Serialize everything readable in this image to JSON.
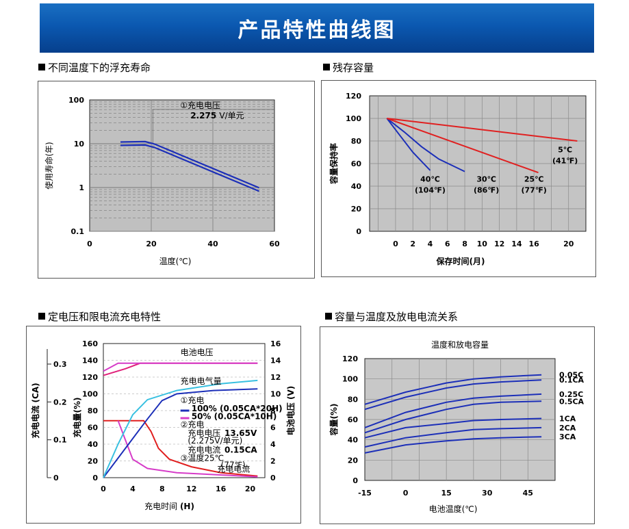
{
  "banner": {
    "title": "产品特性曲线图"
  },
  "sections": {
    "float_life": "不同温度下的浮充寿命",
    "residual": "残存容量",
    "charging": "定电压和限电流充电特性",
    "capacity_temp": "容量与温度及放电电流关系"
  },
  "chart_data": [
    {
      "id": "float_life",
      "type": "line",
      "title": "",
      "xlabel": "温度(℃)",
      "ylabel": "使用寿命(年)",
      "yscale": "log",
      "xlim": [
        0,
        60
      ],
      "ylim": [
        0.1,
        100
      ],
      "x_ticks": [
        "0",
        "20",
        "40",
        "60"
      ],
      "y_ticks": [
        "0.1",
        "1",
        "10",
        "100"
      ],
      "grid": true,
      "annotation": {
        "line1": "①充电电压",
        "value": "2.275",
        "unit": "V/单元"
      },
      "series": [
        {
          "points": [
            [
              10,
              10
            ],
            [
              18,
              10.2
            ],
            [
              21,
              9
            ],
            [
              55,
              0.9
            ]
          ]
        }
      ]
    },
    {
      "id": "residual",
      "type": "line",
      "title": "",
      "xlabel": "保存时间(月)",
      "ylabel": "容量保持率",
      "xlim": [
        -3,
        22
      ],
      "ylim": [
        0,
        120
      ],
      "x_ticks": [
        "0",
        "2",
        "4",
        "6",
        "8",
        "10",
        "12",
        "14",
        "16",
        "20"
      ],
      "y_ticks": [
        "0",
        "20",
        "40",
        "60",
        "80",
        "100",
        "120"
      ],
      "grid": true,
      "series": [
        {
          "label": [
            "40℃",
            "(104℉)"
          ],
          "color": "#1c2fb8",
          "points": [
            [
              -1,
              100
            ],
            [
              0.5,
              85
            ],
            [
              2,
              70
            ],
            [
              3,
              62
            ],
            [
              4,
              54
            ]
          ]
        },
        {
          "label": [
            "30℃",
            "(86℉)"
          ],
          "color": "#1c2fb8",
          "points": [
            [
              -1,
              100
            ],
            [
              1,
              88
            ],
            [
              3,
              75
            ],
            [
              5,
              64
            ],
            [
              8,
              53
            ]
          ]
        },
        {
          "label": [
            "25℃",
            "(77℉)"
          ],
          "color": "#e02020",
          "points": [
            [
              -1,
              100
            ],
            [
              16.5,
              52
            ]
          ]
        },
        {
          "label": [
            "5℃",
            "(41℉)"
          ],
          "color": "#e02020",
          "points": [
            [
              -1,
              100
            ],
            [
              21,
              80
            ]
          ]
        }
      ]
    },
    {
      "id": "charging",
      "type": "line",
      "title": "",
      "xlabel": "充电时间 (H)",
      "ylabel_left_outer": "充电电流 (CA)",
      "ylabel_left": "充电量(%)",
      "ylabel_right": "电池电压 (V)",
      "xlim": [
        0,
        22
      ],
      "ylim": [
        0,
        160
      ],
      "y_ticks": [
        "0",
        "20",
        "40",
        "60",
        "80",
        "100",
        "120",
        "140",
        "160"
      ],
      "y2_ticks": [
        "0",
        "2",
        "4",
        "6",
        "8",
        "10",
        "12",
        "14",
        "16"
      ],
      "ca_ticks": [
        "0",
        "0.1",
        "0.2",
        "0.3"
      ],
      "x_ticks": [
        "0",
        "4",
        "8",
        "12",
        "16",
        "20"
      ],
      "labels": {
        "voltage": "电池电压",
        "charge_volume": "充电电气量",
        "current": "充电电流",
        "legend_charge": "①充电",
        "legend_100": "100% (0.05CA*20H)",
        "legend_50": "50% (0.05CA*10H)",
        "cond_title": "②充电",
        "cond_voltage_label": "充电电压",
        "cond_voltage_value": "13.65V",
        "cond_voltage_sub": "(2.275V/单元)",
        "cond_current_label": "充电电流",
        "cond_current_value": "0.15CA",
        "cond_temp": "③温度25℃",
        "cond_temp_f": "(77℉)"
      },
      "series": [
        {
          "name": "100% (0.05CA*20H) voltage",
          "color": "#e0207a",
          "axis": "V",
          "points": [
            [
              0,
              12.2
            ],
            [
              3,
              13.0
            ],
            [
              5,
              13.65
            ],
            [
              21,
              13.65
            ]
          ]
        },
        {
          "name": "50% (0.05CA*10H) voltage",
          "color": "#d63cc8",
          "axis": "V",
          "points": [
            [
              0,
              12.7
            ],
            [
              2,
              13.65
            ],
            [
              21,
              13.65
            ]
          ]
        },
        {
          "name": "100% current",
          "color": "#e01e1e",
          "axis": "%",
          "points": [
            [
              0,
              68
            ],
            [
              5.5,
              68
            ],
            [
              6.5,
              55
            ],
            [
              7.5,
              35
            ],
            [
              9,
              22
            ],
            [
              12,
              13
            ],
            [
              16,
              6
            ],
            [
              21,
              2
            ]
          ]
        },
        {
          "name": "50% current",
          "color": "#d63cc8",
          "axis": "%",
          "points": [
            [
              2,
              68
            ],
            [
              3,
              45
            ],
            [
              4,
              22
            ],
            [
              6,
              11
            ],
            [
              10,
              6
            ],
            [
              21,
              1
            ]
          ]
        },
        {
          "name": "100% charge volume",
          "color": "#1c2fb8",
          "axis": "%",
          "points": [
            [
              0,
              0
            ],
            [
              6,
              70
            ],
            [
              8,
              92
            ],
            [
              10,
              100
            ],
            [
              15,
              104
            ],
            [
              21,
              106
            ]
          ]
        },
        {
          "name": "50% charge volume",
          "color": "#38c0e0",
          "axis": "%",
          "points": [
            [
              0,
              0
            ],
            [
              2,
              40
            ],
            [
              4,
              75
            ],
            [
              6,
              93
            ],
            [
              10,
              104
            ],
            [
              16,
              112
            ],
            [
              21,
              116
            ]
          ]
        }
      ]
    },
    {
      "id": "capacity_temp",
      "type": "line",
      "title": "温度和放电容量",
      "xlabel": "电池温度(℃)",
      "ylabel": "容量(%)",
      "xlim": [
        -15,
        55
      ],
      "ylim": [
        0,
        120
      ],
      "x_ticks": [
        "-15",
        "0",
        "15",
        "30",
        "45"
      ],
      "y_ticks": [
        "0",
        "20",
        "40",
        "60",
        "80",
        "100",
        "120"
      ],
      "grid": true,
      "series": [
        {
          "name": "0.05C",
          "color": "#1c2fb8",
          "points": [
            [
              -15,
              75
            ],
            [
              0,
              87
            ],
            [
              15,
              96
            ],
            [
              25,
              100
            ],
            [
              35,
              102
            ],
            [
              50,
              104
            ]
          ]
        },
        {
          "name": "0.1CA",
          "color": "#1c2fb8",
          "points": [
            [
              -15,
              70
            ],
            [
              0,
              82
            ],
            [
              15,
              91
            ],
            [
              25,
              95
            ],
            [
              35,
              97
            ],
            [
              50,
              99
            ]
          ]
        },
        {
          "name": "0.25C",
          "color": "#1c2fb8",
          "points": [
            [
              -15,
              52
            ],
            [
              0,
              67
            ],
            [
              15,
              77
            ],
            [
              25,
              81
            ],
            [
              35,
              83
            ],
            [
              50,
              85
            ]
          ]
        },
        {
          "name": "0.5CA",
          "color": "#1c2fb8",
          "points": [
            [
              -15,
              47
            ],
            [
              0,
              60
            ],
            [
              15,
              70
            ],
            [
              25,
              75
            ],
            [
              35,
              77
            ],
            [
              50,
              78
            ]
          ]
        },
        {
          "name": "1CA",
          "color": "#1c2fb8",
          "points": [
            [
              -15,
              42
            ],
            [
              0,
              52
            ],
            [
              15,
              56
            ],
            [
              25,
              59
            ],
            [
              35,
              60
            ],
            [
              50,
              61
            ]
          ]
        },
        {
          "name": "2CA",
          "color": "#1c2fb8",
          "points": [
            [
              -15,
              33
            ],
            [
              0,
              42
            ],
            [
              15,
              47
            ],
            [
              25,
              50
            ],
            [
              35,
              51
            ],
            [
              50,
              52
            ]
          ]
        },
        {
          "name": "3CA",
          "color": "#1c2fb8",
          "points": [
            [
              -15,
              27
            ],
            [
              0,
              35
            ],
            [
              15,
              39
            ],
            [
              25,
              41
            ],
            [
              35,
              42
            ],
            [
              50,
              43
            ]
          ]
        }
      ]
    }
  ]
}
